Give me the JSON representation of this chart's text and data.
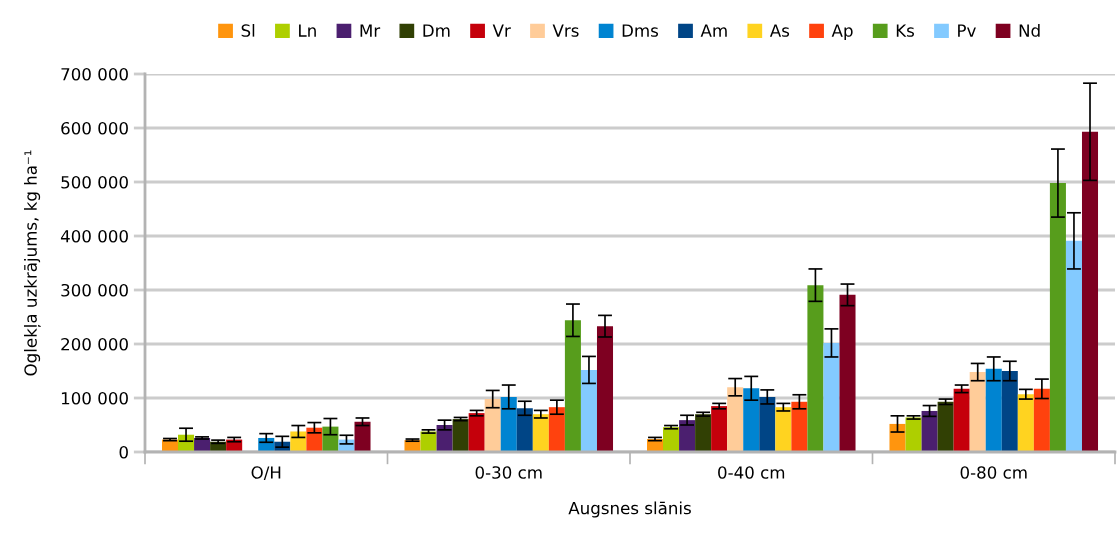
{
  "chart_data": {
    "type": "bar",
    "xlabel": "Augsnes slānis",
    "ylabel": "Oglekļa uzkrājums, kg ha⁻¹",
    "categories": [
      "O/H",
      "0-30 cm",
      "0-40 cm",
      "0-80 cm"
    ],
    "ylim": [
      0,
      700000
    ],
    "yticks": [
      {
        "value": 0,
        "label": "0"
      },
      {
        "value": 100000,
        "label": "100 000"
      },
      {
        "value": 200000,
        "label": "200 000"
      },
      {
        "value": 300000,
        "label": "300 000"
      },
      {
        "value": 400000,
        "label": "400 000"
      },
      {
        "value": 500000,
        "label": "500 000"
      },
      {
        "value": 600000,
        "label": "600 000"
      },
      {
        "value": 700000,
        "label": "700 000"
      }
    ],
    "grid": "y",
    "legend": "top",
    "series": [
      {
        "name": "Sl",
        "color": "#ff950e",
        "values": [
          23000,
          22000,
          24000,
          52000
        ],
        "errors": [
          2000,
          2000,
          3000,
          15000
        ]
      },
      {
        "name": "Ln",
        "color": "#aecf00",
        "values": [
          32000,
          38000,
          46000,
          64000
        ],
        "errors": [
          12000,
          3000,
          3000,
          3000
        ]
      },
      {
        "name": "Mr",
        "color": "#4b1f6f",
        "values": [
          26000,
          50000,
          59000,
          76000
        ],
        "errors": [
          2000,
          9000,
          9000,
          10000
        ]
      },
      {
        "name": "Dm",
        "color": "#314004",
        "values": [
          19000,
          61000,
          70000,
          93000
        ],
        "errors": [
          3000,
          3000,
          3500,
          5000
        ]
      },
      {
        "name": "Vr",
        "color": "#c5000b",
        "values": [
          23000,
          72000,
          85000,
          117000
        ],
        "errors": [
          4000,
          5000,
          5000,
          7000
        ]
      },
      {
        "name": "Vrs",
        "color": "#ffcc99",
        "values": [
          null,
          98000,
          120000,
          148000
        ],
        "errors": [
          null,
          16000,
          16000,
          16000
        ]
      },
      {
        "name": "Dms",
        "color": "#0084d1",
        "values": [
          26000,
          102000,
          118000,
          154000
        ],
        "errors": [
          8000,
          22000,
          22000,
          22000
        ]
      },
      {
        "name": "Am",
        "color": "#004586",
        "values": [
          19000,
          81000,
          102000,
          150000
        ],
        "errors": [
          10000,
          13000,
          13000,
          18000
        ]
      },
      {
        "name": "As",
        "color": "#ffd320",
        "values": [
          38000,
          70000,
          83000,
          107000
        ],
        "errors": [
          11000,
          7000,
          7000,
          9000
        ]
      },
      {
        "name": "Ap",
        "color": "#ff420e",
        "values": [
          45000,
          83000,
          93000,
          117000
        ],
        "errors": [
          9500,
          13000,
          13000,
          18000
        ]
      },
      {
        "name": "Ks",
        "color": "#579d1c",
        "values": [
          47000,
          244000,
          309000,
          498000
        ],
        "errors": [
          15000,
          30000,
          30000,
          63000
        ]
      },
      {
        "name": "Pv",
        "color": "#83caff",
        "values": [
          23000,
          152000,
          202000,
          391000
        ],
        "errors": [
          8000,
          25000,
          26000,
          52000
        ]
      },
      {
        "name": "Nd",
        "color": "#7e0021",
        "values": [
          56000,
          233000,
          291000,
          593000
        ],
        "errors": [
          7000,
          20000,
          20000,
          90000
        ]
      }
    ]
  }
}
